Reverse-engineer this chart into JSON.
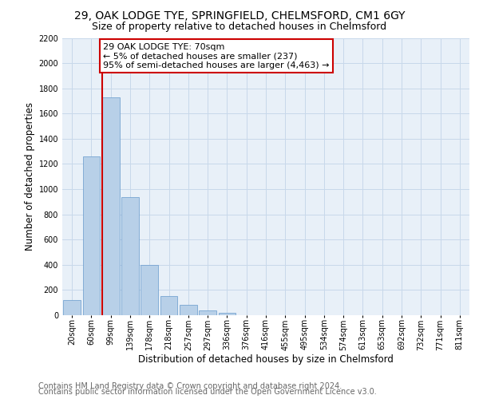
{
  "title": "29, OAK LODGE TYE, SPRINGFIELD, CHELMSFORD, CM1 6GY",
  "subtitle": "Size of property relative to detached houses in Chelmsford",
  "xlabel": "Distribution of detached houses by size in Chelmsford",
  "ylabel": "Number of detached properties",
  "footer_line1": "Contains HM Land Registry data © Crown copyright and database right 2024.",
  "footer_line2": "Contains public sector information licensed under the Open Government Licence v3.0.",
  "bar_labels": [
    "20sqm",
    "60sqm",
    "99sqm",
    "139sqm",
    "178sqm",
    "218sqm",
    "257sqm",
    "297sqm",
    "336sqm",
    "376sqm",
    "416sqm",
    "455sqm",
    "495sqm",
    "534sqm",
    "574sqm",
    "613sqm",
    "653sqm",
    "692sqm",
    "732sqm",
    "771sqm",
    "811sqm"
  ],
  "bar_values": [
    120,
    1260,
    1730,
    940,
    400,
    150,
    80,
    40,
    20,
    0,
    0,
    0,
    0,
    0,
    0,
    0,
    0,
    0,
    0,
    0,
    0
  ],
  "bar_color": "#b8d0e8",
  "bar_edgecolor": "#6699cc",
  "grid_color": "#c8d8ea",
  "annotation_text": "29 OAK LODGE TYE: 70sqm\n← 5% of detached houses are smaller (237)\n95% of semi-detached houses are larger (4,463) →",
  "annotation_box_color": "#ffffff",
  "annotation_box_edgecolor": "#cc0000",
  "vline_x_index": 1.55,
  "vline_color": "#cc0000",
  "ylim": [
    0,
    2200
  ],
  "yticks": [
    0,
    200,
    400,
    600,
    800,
    1000,
    1200,
    1400,
    1600,
    1800,
    2000,
    2200
  ],
  "background_color": "#ffffff",
  "plot_bg_color": "#e8f0f8",
  "title_fontsize": 10,
  "subtitle_fontsize": 9,
  "axis_label_fontsize": 8.5,
  "tick_fontsize": 7,
  "annotation_fontsize": 8,
  "footer_fontsize": 7
}
